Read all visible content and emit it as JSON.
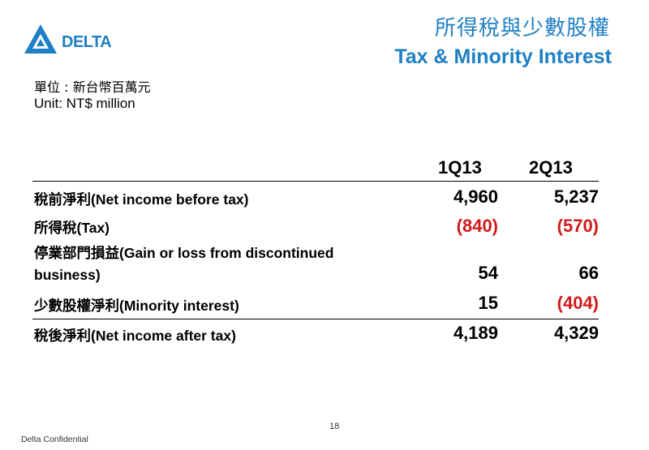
{
  "brand": {
    "name": "DELTA",
    "color": "#1e7fc4"
  },
  "title": {
    "chinese": "所得稅與少數股權",
    "english": "Tax & Minority Interest"
  },
  "unit": {
    "chinese": "單位 : 新台幣百萬元",
    "english": "Unit: NT$ million"
  },
  "columns": [
    "1Q13",
    "2Q13"
  ],
  "rows": [
    {
      "label": "稅前淨利(Net income before tax)",
      "q1": "4,960",
      "q2": "5,237"
    },
    {
      "label": "所得稅(Tax)",
      "q1": "(840)",
      "q2": "(570)"
    },
    {
      "label_line1": "停業部門損益(Gain or loss from discontinued",
      "label_line2": "business)",
      "q1": "54",
      "q2": "66"
    },
    {
      "label": "少數股權淨利(Minority interest)",
      "q1": "15",
      "q2": "(404)"
    },
    {
      "label": "稅後淨利(Net income after tax)",
      "q1": "4,189",
      "q2": "4,329"
    }
  ],
  "footer": {
    "page": "18",
    "confidential": "Delta Confidential"
  },
  "colors": {
    "negative": "#d11a1a",
    "accent": "#1e7fc4"
  }
}
